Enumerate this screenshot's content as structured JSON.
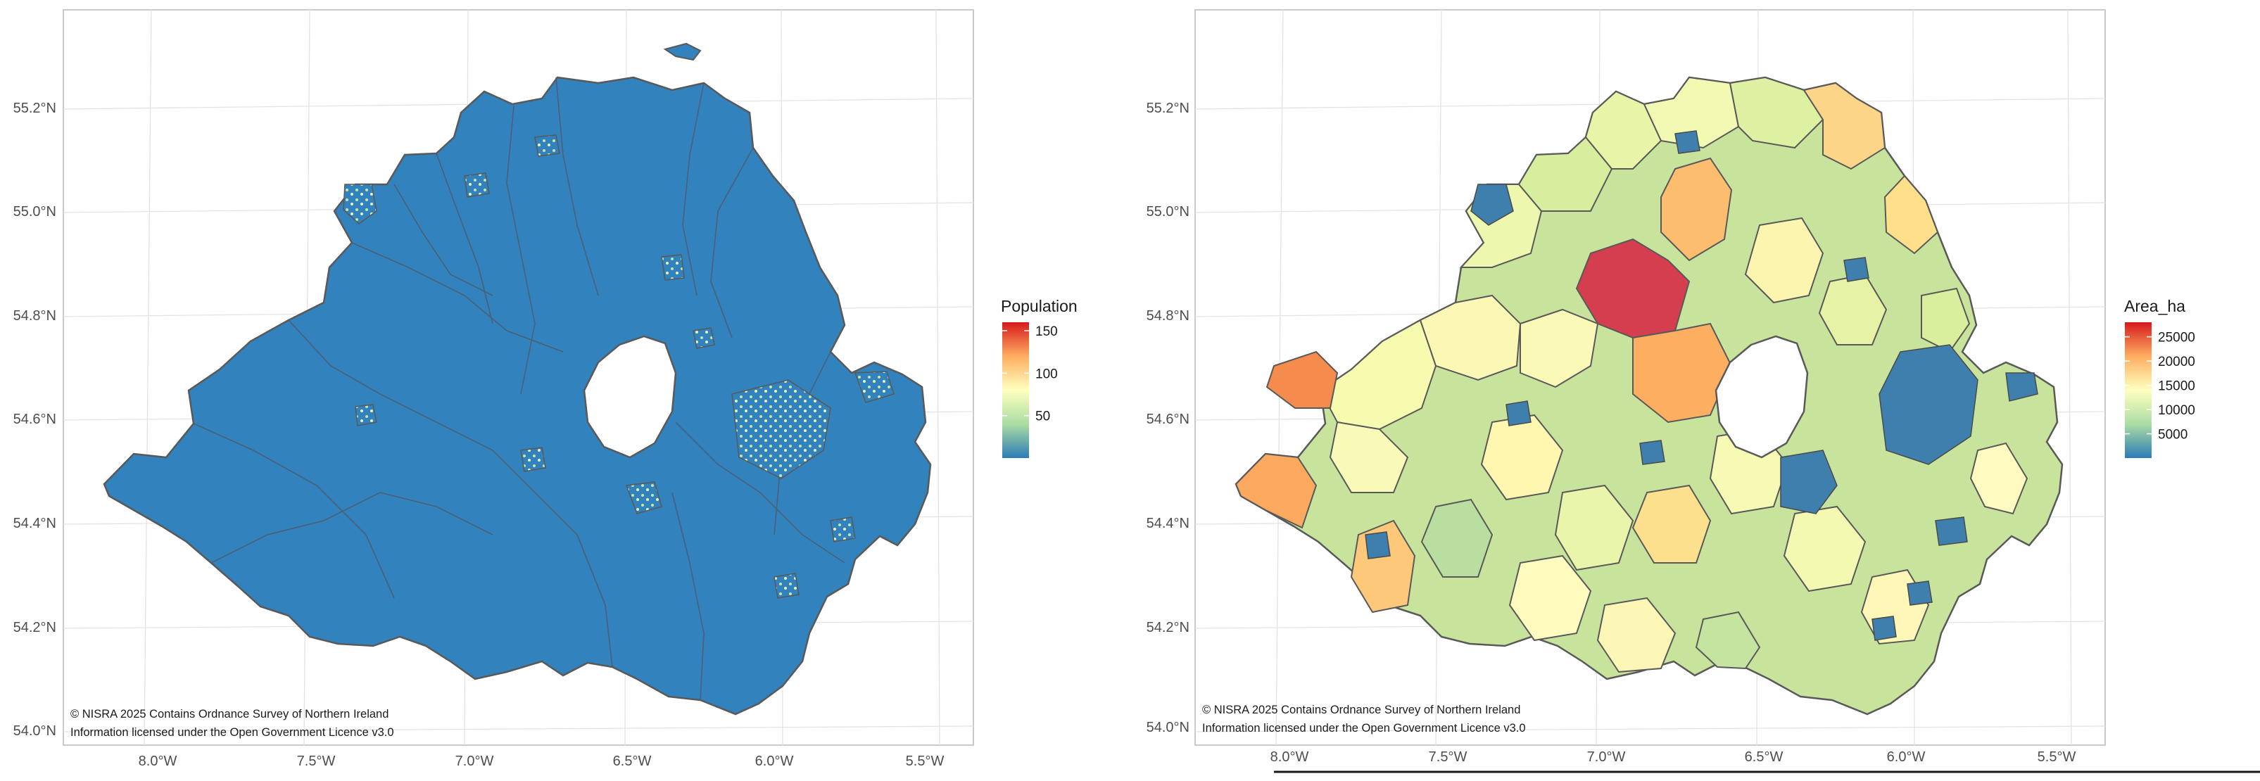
{
  "maps": [
    {
      "id": "population",
      "legend": {
        "title": "Population",
        "ticks": [
          {
            "value": 150,
            "label": "150"
          },
          {
            "value": 100,
            "label": "100"
          },
          {
            "value": 50,
            "label": "50"
          }
        ],
        "range": [
          0,
          160
        ],
        "colors": [
          "#2c7bb6",
          "#abdda4",
          "#ffffbf",
          "#fdae61",
          "#d7191c"
        ]
      },
      "fill_color": "#3182bd",
      "credit": [
        "© NISRA 2025 Contains Ordnance Survey of Northern Ireland",
        "Information licensed under the Open Government Licence v3.0"
      ]
    },
    {
      "id": "area",
      "legend": {
        "title": "Area_ha",
        "ticks": [
          {
            "value": 25000,
            "label": "25000"
          },
          {
            "value": 20000,
            "label": "20000"
          },
          {
            "value": 15000,
            "label": "15000"
          },
          {
            "value": 10000,
            "label": "10000"
          },
          {
            "value": 5000,
            "label": "5000"
          }
        ],
        "range": [
          0,
          28000
        ],
        "colors": [
          "#2c7bb6",
          "#abdda4",
          "#ffffbf",
          "#fdae61",
          "#d7191c"
        ]
      },
      "credit": [
        "© NISRA 2025 Contains Ordnance Survey of Northern Ireland",
        "Information licensed under the Open Government Licence v3.0"
      ]
    }
  ],
  "axes": {
    "lat": [
      {
        "value": 55.2,
        "label": "55.2°N"
      },
      {
        "value": 55.0,
        "label": "55.0°N"
      },
      {
        "value": 54.8,
        "label": "54.8°N"
      },
      {
        "value": 54.6,
        "label": "54.6°N"
      },
      {
        "value": 54.4,
        "label": "54.4°N"
      },
      {
        "value": 54.2,
        "label": "54.2°N"
      },
      {
        "value": 54.0,
        "label": "54.0°N"
      }
    ],
    "lon": [
      {
        "value": -8.0,
        "label": "8.0°W"
      },
      {
        "value": -7.5,
        "label": "7.5°W"
      },
      {
        "value": -7.0,
        "label": "7.0°W"
      },
      {
        "value": -6.5,
        "label": "6.5°W"
      },
      {
        "value": -6.0,
        "label": "6.0°W"
      },
      {
        "value": -5.5,
        "label": "5.5°W"
      }
    ]
  }
}
